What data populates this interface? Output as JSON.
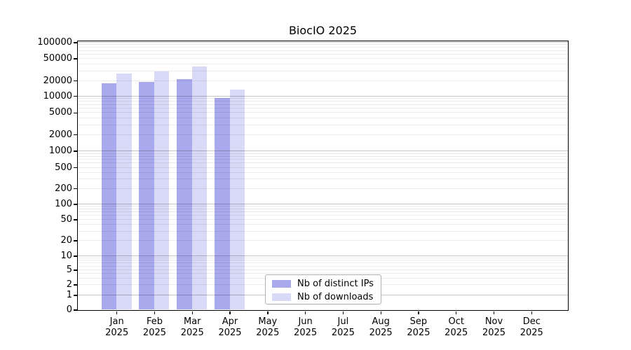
{
  "title": "BiocIO 2025",
  "colors": {
    "ips": "#a9a9ee",
    "downloads": "#d9d9f8",
    "grid_minor": "#ebebeb",
    "grid_major": "#c4c4c4",
    "axis": "#000000"
  },
  "legend": {
    "items": [
      {
        "key": "ips",
        "label": "Nb of distinct IPs"
      },
      {
        "key": "downloads",
        "label": "Nb of downloads"
      }
    ]
  },
  "chart_data": {
    "type": "bar",
    "title": "BiocIO 2025",
    "categories": [
      "Jan 2025",
      "Feb 2025",
      "Mar 2025",
      "Apr 2025",
      "May 2025",
      "Jun 2025",
      "Jul 2025",
      "Aug 2025",
      "Sep 2025",
      "Oct 2025",
      "Nov 2025",
      "Dec 2025"
    ],
    "series": [
      {
        "key": "ips",
        "name": "Nb of distinct IPs",
        "values": [
          17500,
          19000,
          21000,
          9200,
          null,
          null,
          null,
          null,
          null,
          null,
          null,
          null
        ]
      },
      {
        "key": "downloads",
        "name": "Nb of downloads",
        "values": [
          26500,
          29000,
          36000,
          13300,
          null,
          null,
          null,
          null,
          null,
          null,
          null,
          null
        ]
      }
    ],
    "xlabel": "",
    "ylabel": "",
    "y_scale": "symlog",
    "ylim": [
      0,
      100000
    ],
    "y_ticks": [
      0,
      1,
      2,
      5,
      10,
      20,
      50,
      100,
      200,
      500,
      1000,
      2000,
      5000,
      10000,
      20000,
      50000,
      100000
    ],
    "grid": true,
    "grid_over_bars": true,
    "legend_position": "lower center"
  }
}
